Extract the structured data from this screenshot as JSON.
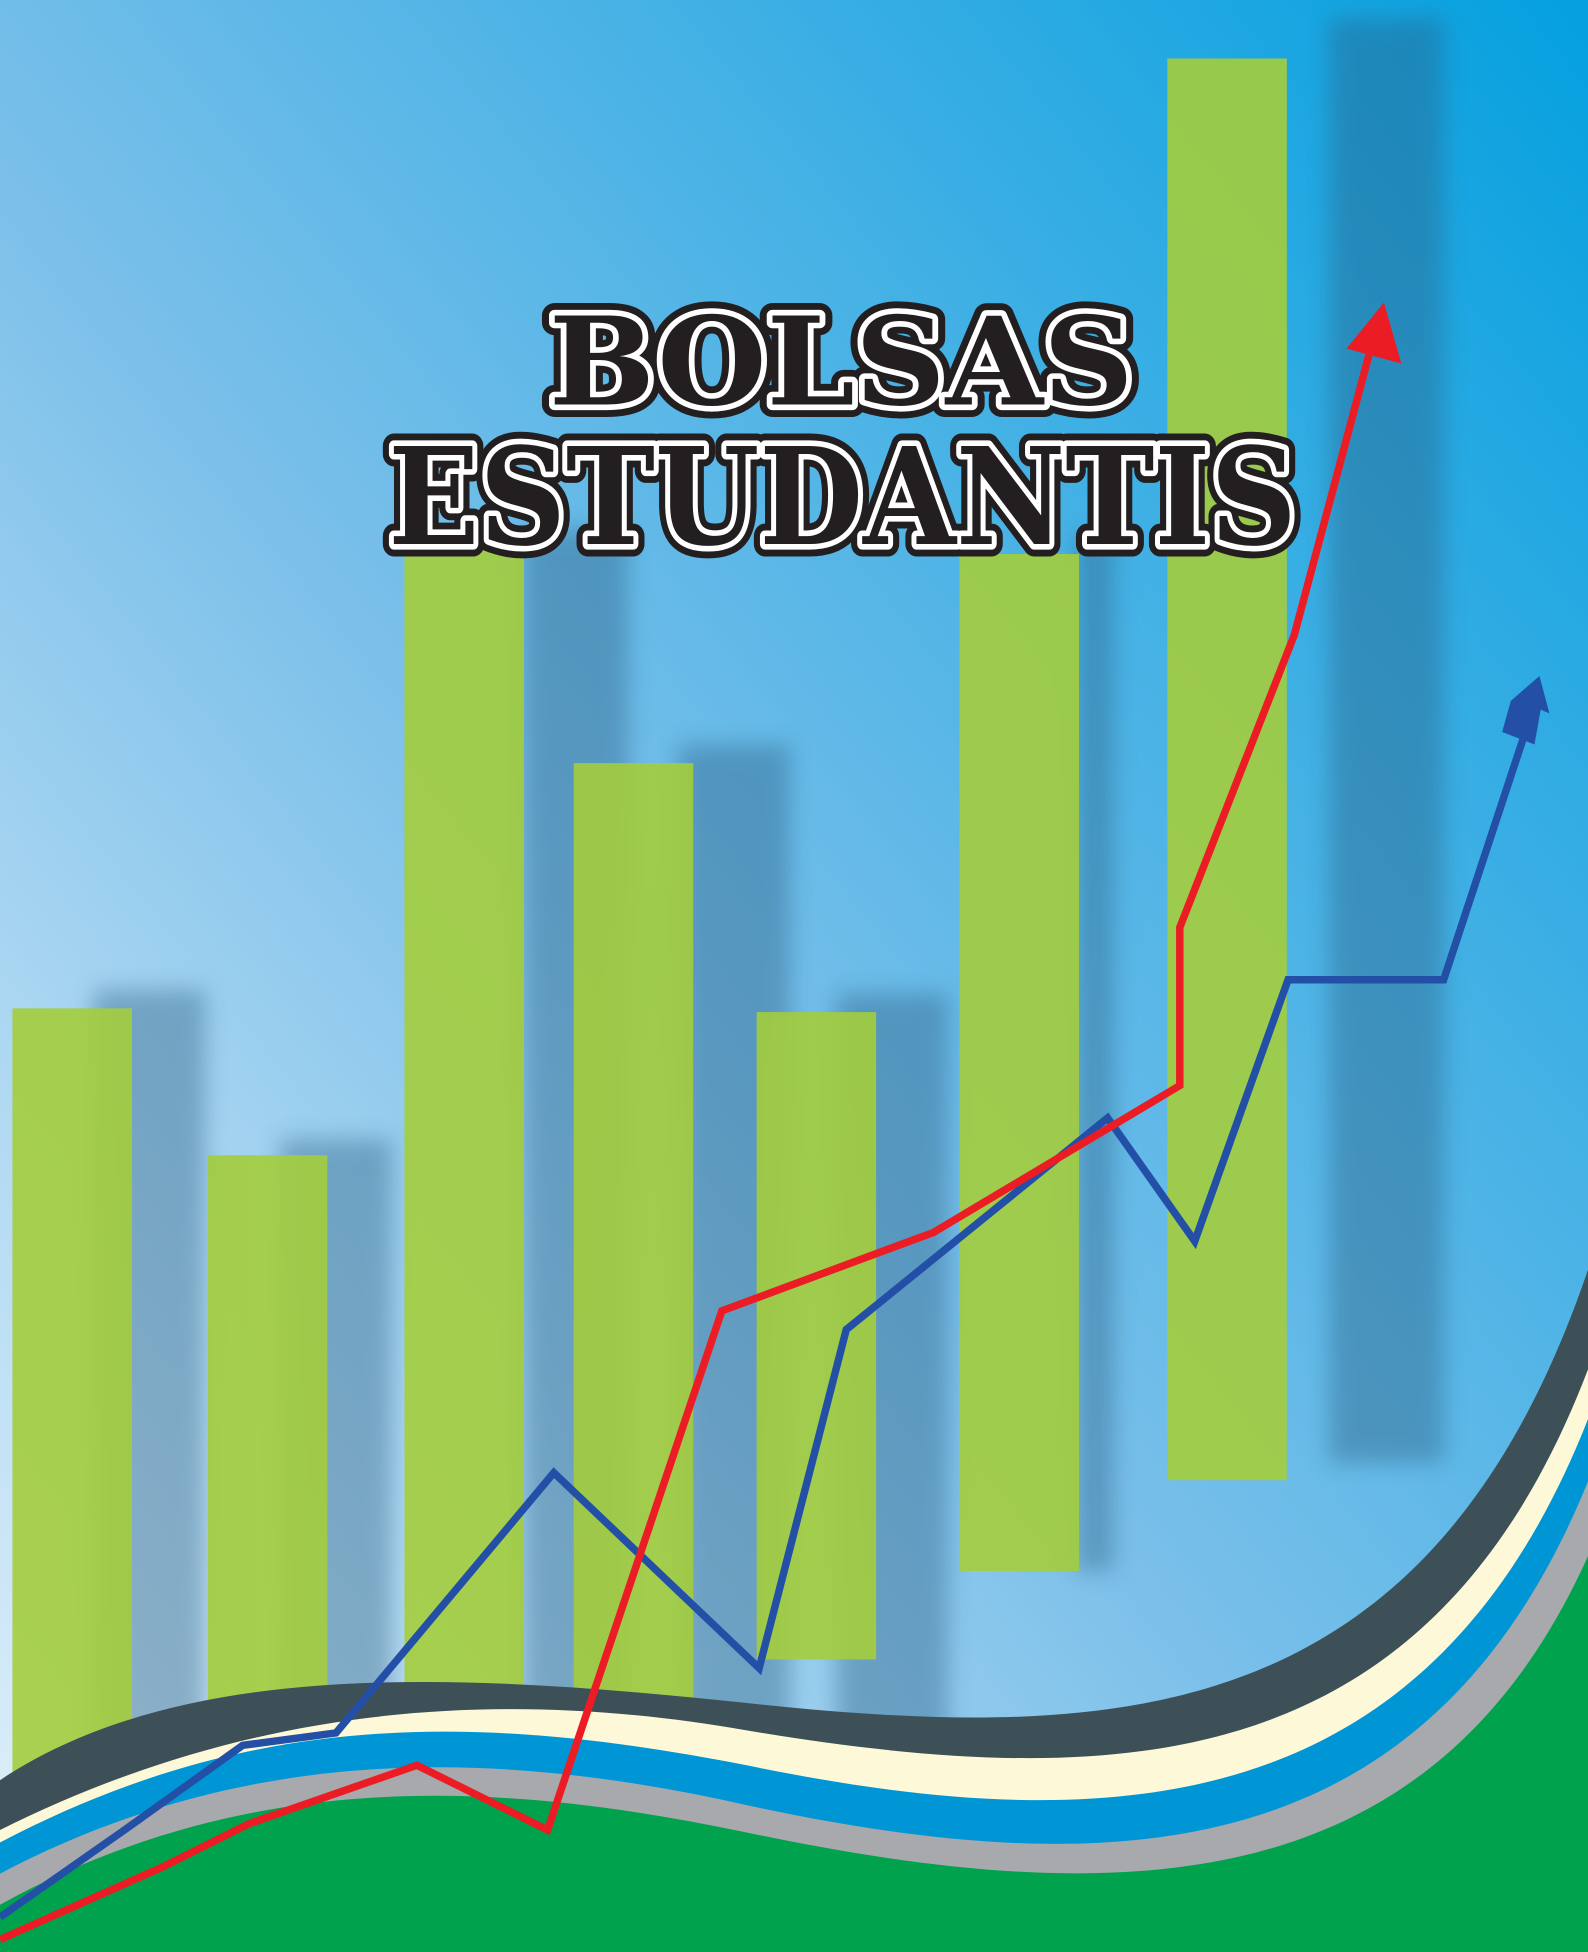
{
  "title": {
    "line1": "BOLSAS",
    "line2": "ESTUDANTIS"
  }
}
